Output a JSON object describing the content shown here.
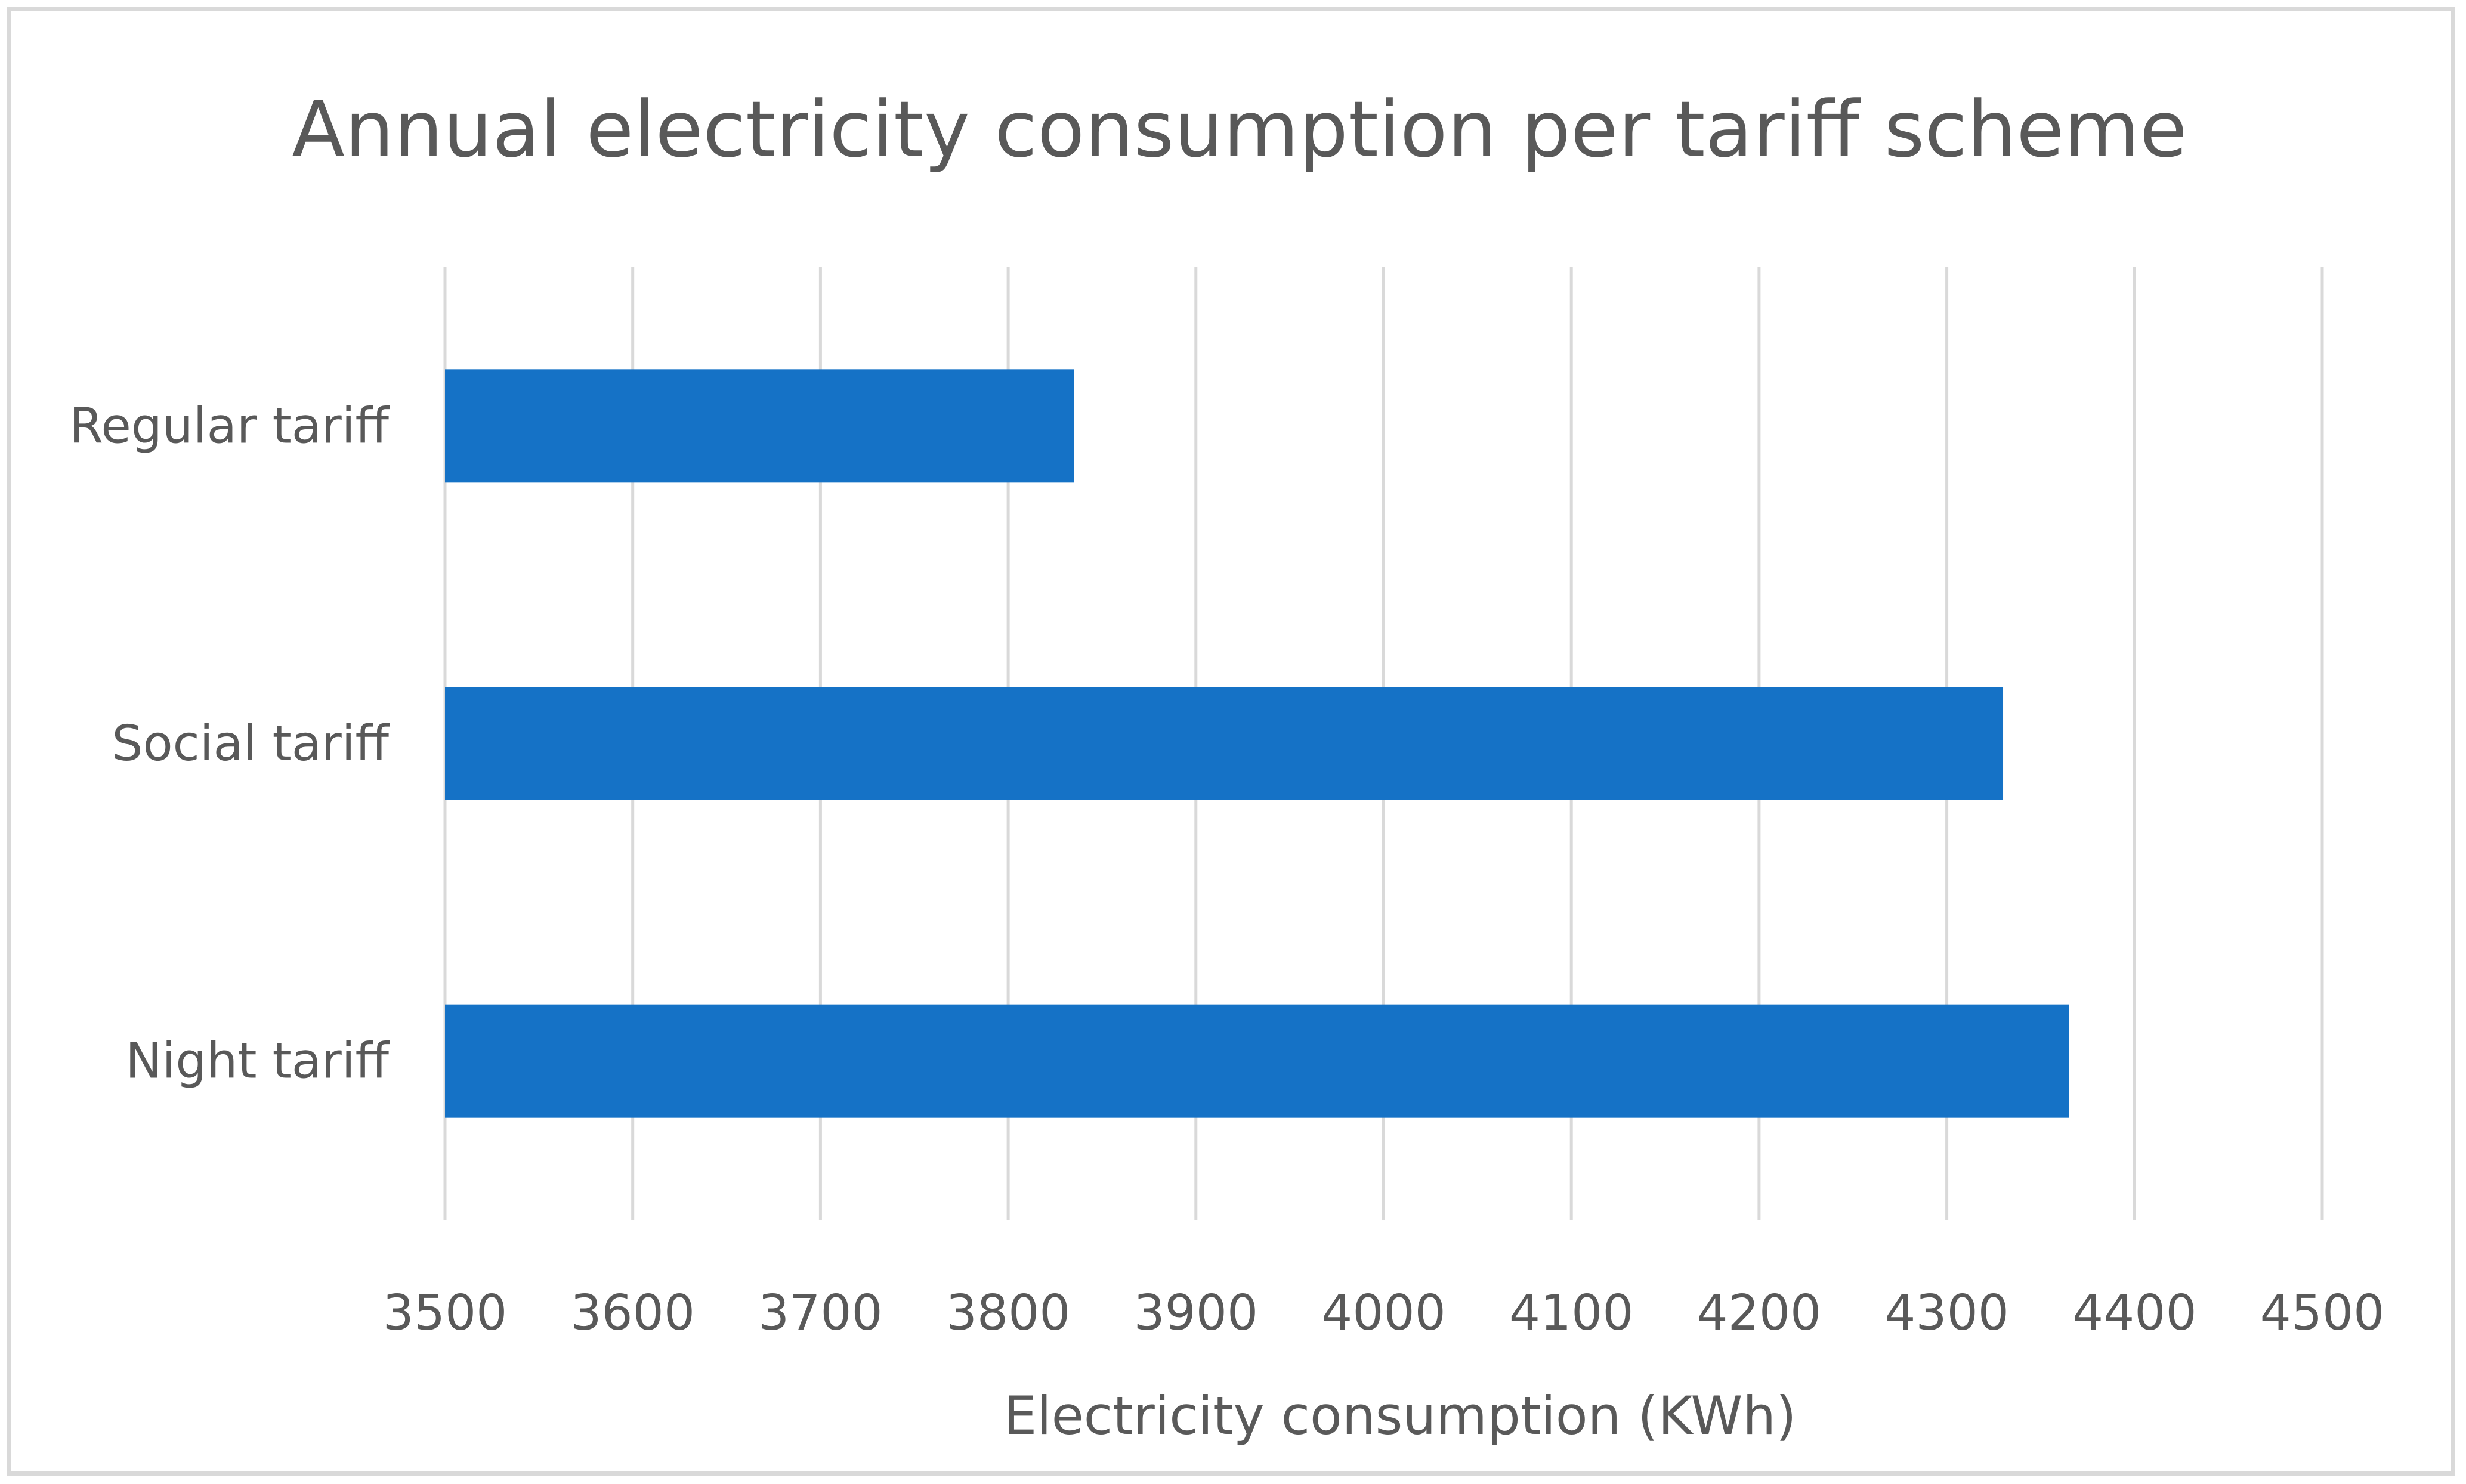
{
  "chart_data": {
    "type": "bar",
    "orientation": "horizontal",
    "title": "Annual electricity consumption per tariff scheme",
    "categories": [
      "Regular tariff",
      "Social tariff",
      "Night tariff"
    ],
    "values": [
      3835,
      4330,
      4365
    ],
    "xlabel": "Electricity consumption (KWh)",
    "ylabel": "",
    "xlim": [
      3500,
      4500
    ],
    "xticks": [
      "3500",
      "3600",
      "3700",
      "3800",
      "3900",
      "4000",
      "4100",
      "4200",
      "4300",
      "4400",
      "4500"
    ],
    "grid": true,
    "legend": "none",
    "colors": {
      "bar": "#1572c6",
      "grid": "#d9d9d9",
      "text": "#595959",
      "border": "#d9d9d9"
    }
  }
}
